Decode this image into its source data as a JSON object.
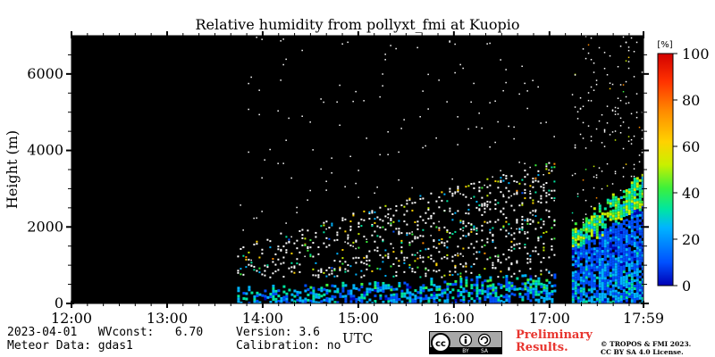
{
  "chart_data": {
    "type": "heatmap",
    "title": "Relative humidity from pollyxt_fmi at Kuopio",
    "xlabel": "UTC",
    "ylabel": "Height (m)",
    "x_ticks": [
      "12:00",
      "13:00",
      "14:00",
      "15:00",
      "16:00",
      "17:00",
      "17:59"
    ],
    "x_range": [
      "12:00",
      "17:59"
    ],
    "y_ticks": [
      0,
      2000,
      4000,
      6000
    ],
    "ylim": [
      0,
      7000
    ],
    "colorbar": {
      "label": "[%]",
      "ticks": [
        0,
        20,
        40,
        60,
        80,
        100
      ],
      "range": [
        0,
        100
      ],
      "colormap": [
        "#0000b4",
        "#0050ff",
        "#00b4ff",
        "#00e6a0",
        "#3cf03c",
        "#c8f000",
        "#ffd200",
        "#ff8c00",
        "#ff3200",
        "#d20000"
      ]
    },
    "no_data_color": "#000000",
    "data_regions": [
      {
        "name": "no signal",
        "start": "12:00",
        "end": "13:44",
        "value": null
      },
      {
        "name": "noisy profiles",
        "start": "13:44",
        "end": "17:04",
        "low_level_top_m": 800,
        "low_level_humidity_pct": [
          10,
          60
        ],
        "upper_points": "sparse white dots"
      },
      {
        "name": "data gap",
        "start": "17:04",
        "end": "17:14",
        "value": null
      },
      {
        "name": "moist boundary layer",
        "start": "17:14",
        "end": "17:59",
        "moist_layer_top_m": [
          1800,
          3200
        ],
        "humidity_pct": [
          5,
          60
        ]
      }
    ]
  },
  "footer": {
    "date_line": "2023-04-01   WVconst:   6.70",
    "meteor_line": "Meteor Data: gdas1",
    "version_line": "Version: 3.6",
    "calibration_line": "Calibration: no",
    "preliminary_line1": "Preliminary",
    "preliminary_line2": "Results.",
    "copyright_line1": "© TROPOS & FMI 2023.",
    "copyright_line2": "CC BY SA 4.0 License.",
    "license_badge": "cc by sa"
  },
  "colors": {
    "background": "#ffffff",
    "plot_background": "#000000",
    "preliminary_text": "#e8352f"
  }
}
